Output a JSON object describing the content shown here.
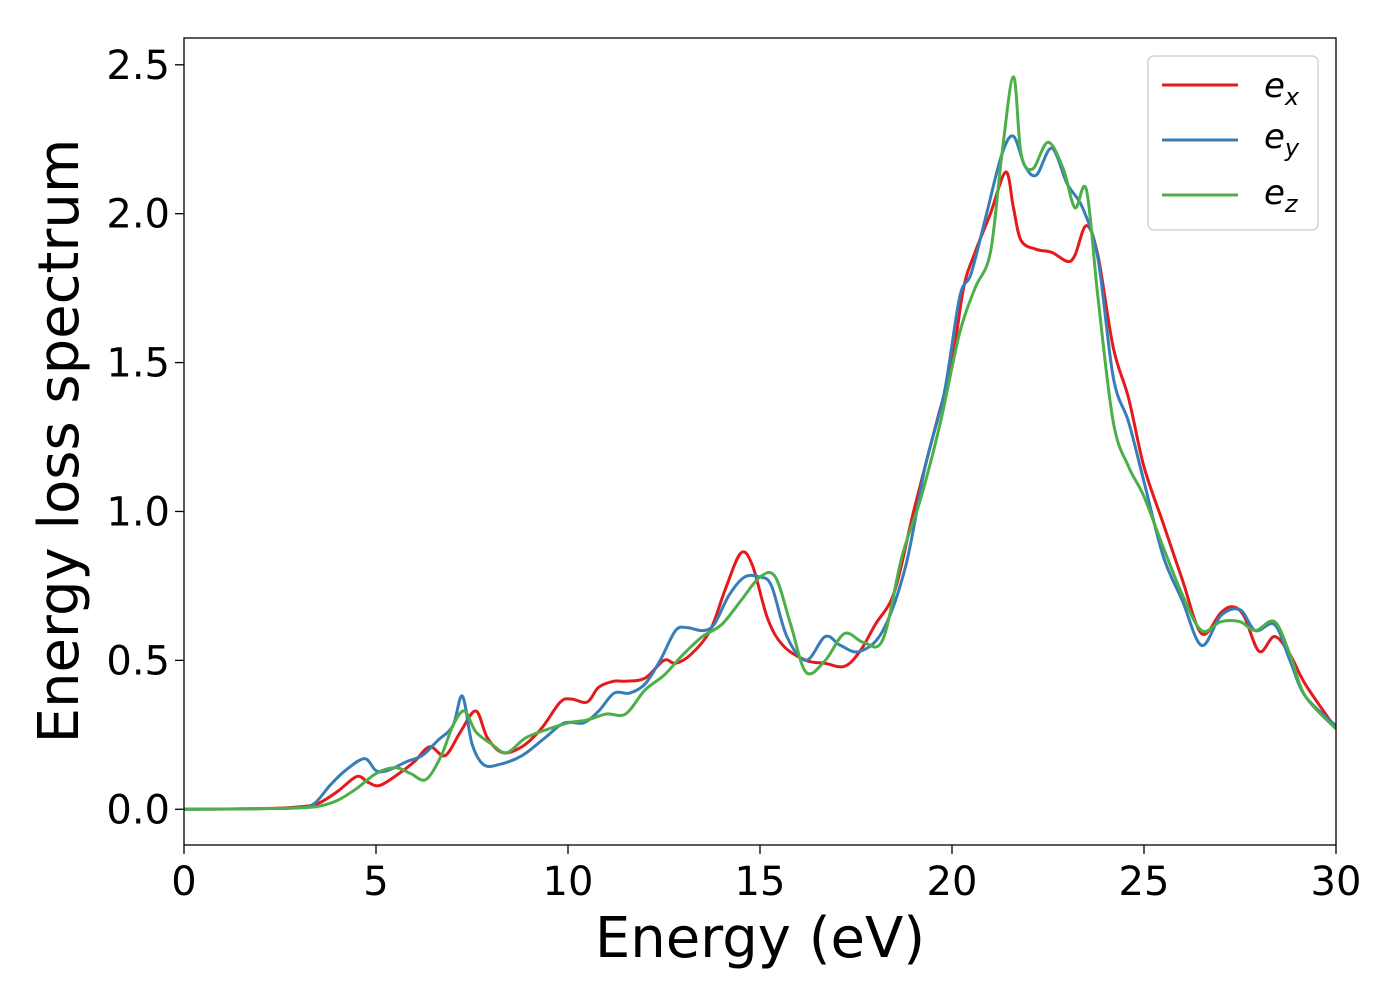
{
  "chart_data": {
    "type": "line",
    "title": "",
    "xlabel": "Energy (eV)",
    "ylabel": "Energy loss spectrum",
    "xlim": [
      0,
      30
    ],
    "ylim": [
      -0.12,
      2.59
    ],
    "xticks": [
      0,
      5,
      10,
      15,
      20,
      25,
      30
    ],
    "xtick_labels": [
      "0",
      "5",
      "10",
      "15",
      "20",
      "25",
      "30"
    ],
    "yticks": [
      0.0,
      0.5,
      1.0,
      1.5,
      2.0,
      2.5
    ],
    "ytick_labels": [
      "0.0",
      "0.5",
      "1.0",
      "1.5",
      "2.0",
      "2.5"
    ],
    "grid": false,
    "legend_position": "top-right",
    "series": [
      {
        "name": "e_x",
        "name_base": "e",
        "name_sub": "x",
        "color": "#e41a1c",
        "x": [
          0,
          2,
          3,
          3.5,
          4,
          4.5,
          4.8,
          5.1,
          5.6,
          6.0,
          6.4,
          6.8,
          7.2,
          7.6,
          7.9,
          8.3,
          8.8,
          9.3,
          9.8,
          10.1,
          10.5,
          10.8,
          11.2,
          11.5,
          12.0,
          12.5,
          12.8,
          13.2,
          13.7,
          14.1,
          14.5,
          14.8,
          15.2,
          15.6,
          16.2,
          16.7,
          17.2,
          17.6,
          18.0,
          18.5,
          19.0,
          19.6,
          20.0,
          20.3,
          20.6,
          21.0,
          21.4,
          21.6,
          21.8,
          22.2,
          22.6,
          23.0,
          23.2,
          23.5,
          23.8,
          24.2,
          24.6,
          25.0,
          25.5,
          26.0,
          26.5,
          27.0,
          27.3,
          27.6,
          28.0,
          28.4,
          28.8,
          29.2,
          30.0
        ],
        "y": [
          0.0,
          0.002,
          0.008,
          0.02,
          0.06,
          0.11,
          0.09,
          0.08,
          0.12,
          0.16,
          0.21,
          0.18,
          0.26,
          0.33,
          0.24,
          0.19,
          0.21,
          0.27,
          0.36,
          0.37,
          0.36,
          0.41,
          0.43,
          0.43,
          0.44,
          0.5,
          0.49,
          0.52,
          0.6,
          0.74,
          0.86,
          0.82,
          0.64,
          0.55,
          0.5,
          0.49,
          0.48,
          0.53,
          0.62,
          0.73,
          1.0,
          1.3,
          1.5,
          1.75,
          1.87,
          2.0,
          2.14,
          2.02,
          1.91,
          1.88,
          1.87,
          1.84,
          1.86,
          1.96,
          1.86,
          1.55,
          1.38,
          1.15,
          0.96,
          0.77,
          0.59,
          0.66,
          0.68,
          0.65,
          0.53,
          0.58,
          0.52,
          0.42,
          0.27
        ]
      },
      {
        "name": "e_y",
        "name_base": "e",
        "name_sub": "y",
        "color": "#377eb8",
        "x": [
          0,
          2,
          3,
          3.4,
          3.8,
          4.2,
          4.7,
          5.0,
          5.3,
          5.8,
          6.2,
          6.6,
          7.0,
          7.25,
          7.5,
          7.8,
          8.2,
          8.8,
          9.4,
          9.9,
          10.4,
          10.8,
          11.2,
          11.6,
          12.0,
          12.4,
          12.8,
          13.1,
          13.5,
          13.8,
          14.2,
          14.6,
          15.0,
          15.3,
          15.7,
          16.2,
          16.7,
          17.1,
          17.6,
          18.2,
          18.8,
          19.3,
          19.8,
          20.2,
          20.5,
          20.9,
          21.3,
          21.6,
          21.9,
          22.2,
          22.6,
          23.0,
          23.4,
          23.8,
          24.2,
          24.6,
          25.0,
          25.5,
          26.0,
          26.5,
          27.0,
          27.5,
          27.9,
          28.4,
          28.8,
          29.2,
          30.0
        ],
        "y": [
          0.0,
          0.002,
          0.005,
          0.02,
          0.08,
          0.13,
          0.17,
          0.13,
          0.13,
          0.16,
          0.18,
          0.23,
          0.28,
          0.38,
          0.22,
          0.15,
          0.15,
          0.18,
          0.24,
          0.29,
          0.29,
          0.33,
          0.39,
          0.39,
          0.42,
          0.5,
          0.6,
          0.61,
          0.6,
          0.62,
          0.72,
          0.78,
          0.78,
          0.75,
          0.58,
          0.5,
          0.58,
          0.55,
          0.53,
          0.6,
          0.82,
          1.15,
          1.4,
          1.72,
          1.8,
          2.0,
          2.2,
          2.26,
          2.16,
          2.13,
          2.22,
          2.1,
          2.02,
          1.85,
          1.45,
          1.3,
          1.1,
          0.85,
          0.7,
          0.55,
          0.65,
          0.67,
          0.6,
          0.62,
          0.5,
          0.38,
          0.28
        ]
      },
      {
        "name": "e_z",
        "name_base": "e",
        "name_sub": "z",
        "color": "#4daf4a",
        "x": [
          0,
          2,
          3,
          3.5,
          4,
          4.5,
          5.0,
          5.5,
          5.9,
          6.3,
          6.7,
          7.0,
          7.3,
          7.6,
          8.0,
          8.4,
          8.9,
          9.5,
          10.0,
          10.5,
          11.0,
          11.5,
          12.0,
          12.5,
          13.0,
          13.5,
          14.0,
          14.5,
          15.0,
          15.4,
          15.8,
          16.2,
          16.7,
          17.2,
          17.7,
          18.2,
          18.7,
          19.2,
          19.7,
          20.2,
          20.6,
          21.0,
          21.3,
          21.6,
          21.8,
          22.1,
          22.5,
          22.9,
          23.2,
          23.5,
          23.8,
          24.2,
          24.6,
          25.0,
          25.5,
          26.0,
          26.5,
          27.0,
          27.5,
          27.9,
          28.4,
          28.8,
          29.2,
          30.0
        ],
        "y": [
          0.0,
          0.002,
          0.005,
          0.01,
          0.03,
          0.07,
          0.12,
          0.14,
          0.12,
          0.1,
          0.18,
          0.28,
          0.33,
          0.26,
          0.22,
          0.19,
          0.24,
          0.27,
          0.29,
          0.3,
          0.32,
          0.32,
          0.4,
          0.45,
          0.52,
          0.58,
          0.62,
          0.7,
          0.78,
          0.78,
          0.62,
          0.46,
          0.5,
          0.59,
          0.56,
          0.57,
          0.85,
          1.05,
          1.3,
          1.6,
          1.75,
          1.87,
          2.2,
          2.46,
          2.2,
          2.15,
          2.24,
          2.15,
          2.02,
          2.08,
          1.72,
          1.3,
          1.15,
          1.05,
          0.88,
          0.72,
          0.6,
          0.63,
          0.63,
          0.6,
          0.63,
          0.52,
          0.38,
          0.27
        ]
      }
    ]
  }
}
